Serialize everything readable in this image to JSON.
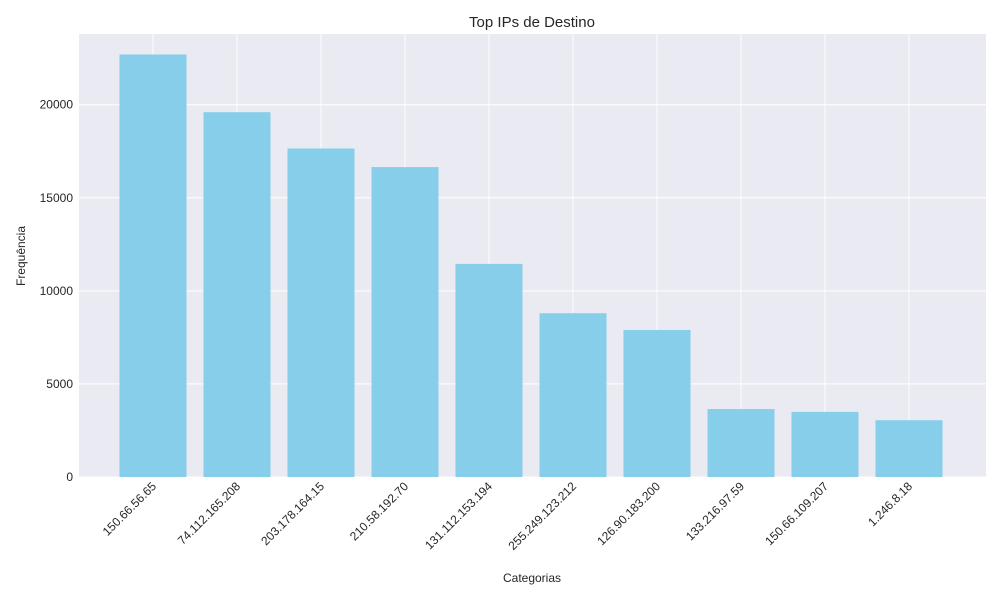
{
  "chart_data": {
    "type": "bar",
    "title": "Top IPs de Destino",
    "xlabel": "Categorias",
    "ylabel": "Frequência",
    "categories": [
      "150.66.56.65",
      "74.112.165.208",
      "203.178.164.15",
      "210.58.192.70",
      "131.112.153.194",
      "255.249.123.212",
      "126.90.183.200",
      "133.216.97.59",
      "150.66.109.207",
      "1.246.8.18"
    ],
    "values": [
      22700,
      19600,
      17650,
      16650,
      11450,
      8800,
      7900,
      3650,
      3500,
      3050
    ],
    "ylim": [
      0,
      23800
    ],
    "yticks": [
      0,
      5000,
      10000,
      15000,
      20000
    ],
    "grid": true,
    "colors": {
      "bar": "#87CEEB",
      "plot_background": "#EAEAF2",
      "grid": "#FFFFFF"
    }
  }
}
